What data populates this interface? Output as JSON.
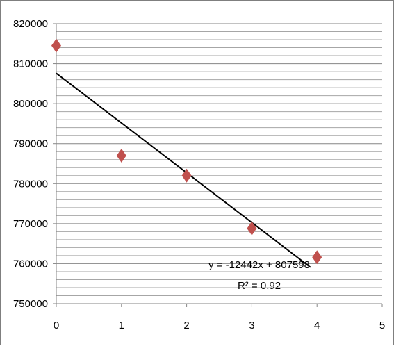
{
  "chart_data": {
    "type": "scatter",
    "title": "",
    "xlabel": "",
    "ylabel": "",
    "xlim": [
      0,
      5
    ],
    "ylim": [
      750000,
      820000
    ],
    "x_ticks": [
      "0",
      "1",
      "2",
      "3",
      "4",
      "5"
    ],
    "y_ticks": [
      "750000",
      "760000",
      "770000",
      "780000",
      "790000",
      "800000",
      "810000",
      "820000"
    ],
    "grid": "horizontal minor lines",
    "legend": "none",
    "series": [
      {
        "marker": "diamond",
        "color": "#C0504D",
        "points": [
          {
            "x": 0,
            "y": 814500
          },
          {
            "x": 1,
            "y": 787000
          },
          {
            "x": 2,
            "y": 782000
          },
          {
            "x": 3,
            "y": 768800
          },
          {
            "x": 4,
            "y": 761600
          }
        ]
      }
    ],
    "trendline": {
      "type": "linear",
      "slope": -12442,
      "intercept": 807598,
      "x_range": [
        0,
        3.9
      ],
      "color": "#000000",
      "equation_label": "y = -12442x + 807598",
      "r2_label": "R² = 0,92"
    }
  }
}
